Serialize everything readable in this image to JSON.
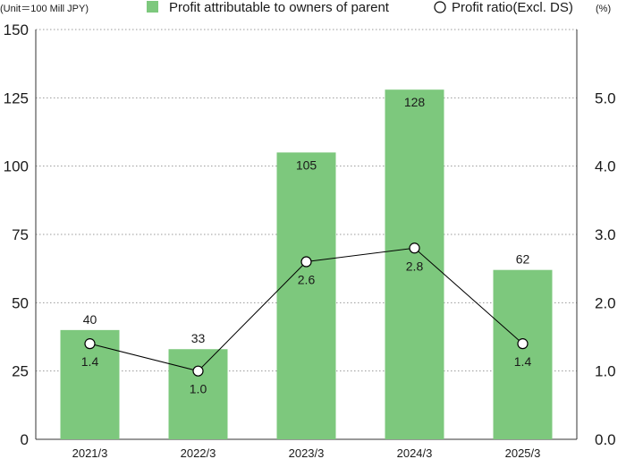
{
  "chart_data": {
    "type": "bar",
    "unit_label": "(Unit＝100 Mill JPY)",
    "right_unit_label": "(%)",
    "categories": [
      "2021/3",
      "2022/3",
      "2023/3",
      "2024/3",
      "2025/3"
    ],
    "series": [
      {
        "name": "Profit attributable to owners of parent",
        "kind": "bar",
        "axis": "left",
        "values": [
          40,
          33,
          105,
          128,
          62
        ],
        "labels": [
          "40",
          "33",
          "105",
          "128",
          "62"
        ],
        "color": "#7dc87d"
      },
      {
        "name": "Profit ratio(Excl. DS)",
        "kind": "line",
        "axis": "right",
        "values": [
          1.4,
          1.0,
          2.6,
          2.8,
          1.4
        ],
        "labels": [
          "1.4",
          "1.0",
          "2.6",
          "2.8",
          "1.4"
        ],
        "color": "#000000"
      }
    ],
    "y_left": {
      "min": 0,
      "max": 150,
      "ticks": [
        "0",
        "25",
        "50",
        "75",
        "100",
        "125",
        "150"
      ]
    },
    "y_right": {
      "min": 0,
      "max": 6,
      "ticks": [
        "0.0",
        "1.0",
        "2.0",
        "3.0",
        "4.0",
        "5.0"
      ]
    },
    "grid": true,
    "legend_position": "top"
  }
}
